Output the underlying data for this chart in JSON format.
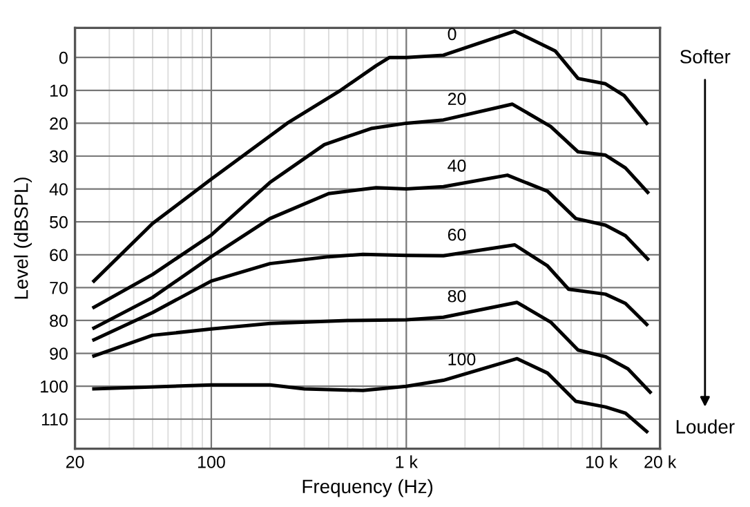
{
  "chart_data": {
    "type": "line",
    "xlabel": "Frequency (Hz)",
    "ylabel": "Level (dBSPL)",
    "log": "x",
    "xlim": [
      20,
      20000
    ],
    "ylim": [
      119,
      -9
    ],
    "xticks": [
      20,
      100,
      {
        "value": 1000,
        "label": "1 k"
      },
      {
        "value": 10000,
        "label": "10 k"
      },
      {
        "value": 20000,
        "label": "20 k"
      }
    ],
    "yticks": [
      0,
      10,
      20,
      30,
      40,
      50,
      60,
      70,
      80,
      90,
      100,
      110
    ],
    "grid": true,
    "marker": "none",
    "line_style": "solid",
    "legend": false,
    "annotations": [
      "Softer",
      "Louder"
    ],
    "series": [
      {
        "name": "0",
        "color": "#000000",
        "x": [
          25,
          50,
          100,
          245,
          460,
          700,
          820,
          1000,
          1550,
          3600,
          5800,
          7600,
          10500,
          13100,
          17100
        ],
        "values": [
          68,
          50.5,
          37,
          20,
          10,
          2.5,
          0,
          0,
          -0.7,
          -8,
          -2,
          6.4,
          8,
          11.6,
          20
        ]
      },
      {
        "name": "20",
        "color": "#000000",
        "x": [
          25,
          50,
          100,
          200,
          380,
          660,
          1000,
          1550,
          3500,
          5500,
          7600,
          10500,
          13300,
          17300
        ],
        "values": [
          76,
          66,
          54,
          38,
          26.5,
          21.6,
          20,
          19,
          14.2,
          21,
          28.7,
          29.7,
          33.6,
          41
        ]
      },
      {
        "name": "40",
        "color": "#000000",
        "x": [
          25,
          50,
          100,
          200,
          400,
          700,
          1000,
          1550,
          3300,
          5300,
          7400,
          10500,
          13300,
          17300
        ],
        "values": [
          82.3,
          73,
          60.6,
          49,
          41.4,
          39.6,
          40,
          39.3,
          35.8,
          40.7,
          49,
          51,
          54.2,
          61.3
        ]
      },
      {
        "name": "60",
        "color": "#000000",
        "x": [
          25,
          50,
          100,
          200,
          400,
          600,
          1000,
          1550,
          3600,
          5300,
          6800,
          10500,
          13300,
          17100
        ],
        "values": [
          85.9,
          77.6,
          68,
          62.7,
          60.6,
          59.9,
          60.2,
          60.3,
          57,
          63.4,
          70.5,
          72,
          74.8,
          81.2
        ]
      },
      {
        "name": "80",
        "color": "#000000",
        "x": [
          25,
          50,
          100,
          200,
          500,
          1000,
          1550,
          3700,
          5500,
          7600,
          10500,
          13700,
          17800
        ],
        "values": [
          90.8,
          84.5,
          82.6,
          80.9,
          80,
          79.8,
          79,
          74.5,
          80.5,
          89,
          91,
          94.7,
          101.8
        ]
      },
      {
        "name": "100",
        "color": "#000000",
        "x": [
          25,
          100,
          200,
          300,
          600,
          1000,
          1550,
          3700,
          5300,
          7400,
          10500,
          13300,
          17100
        ],
        "values": [
          100.8,
          99.6,
          99.6,
          100.8,
          101.3,
          100,
          98.2,
          91.6,
          96,
          104.6,
          106.3,
          108.2,
          113.8
        ]
      }
    ]
  }
}
